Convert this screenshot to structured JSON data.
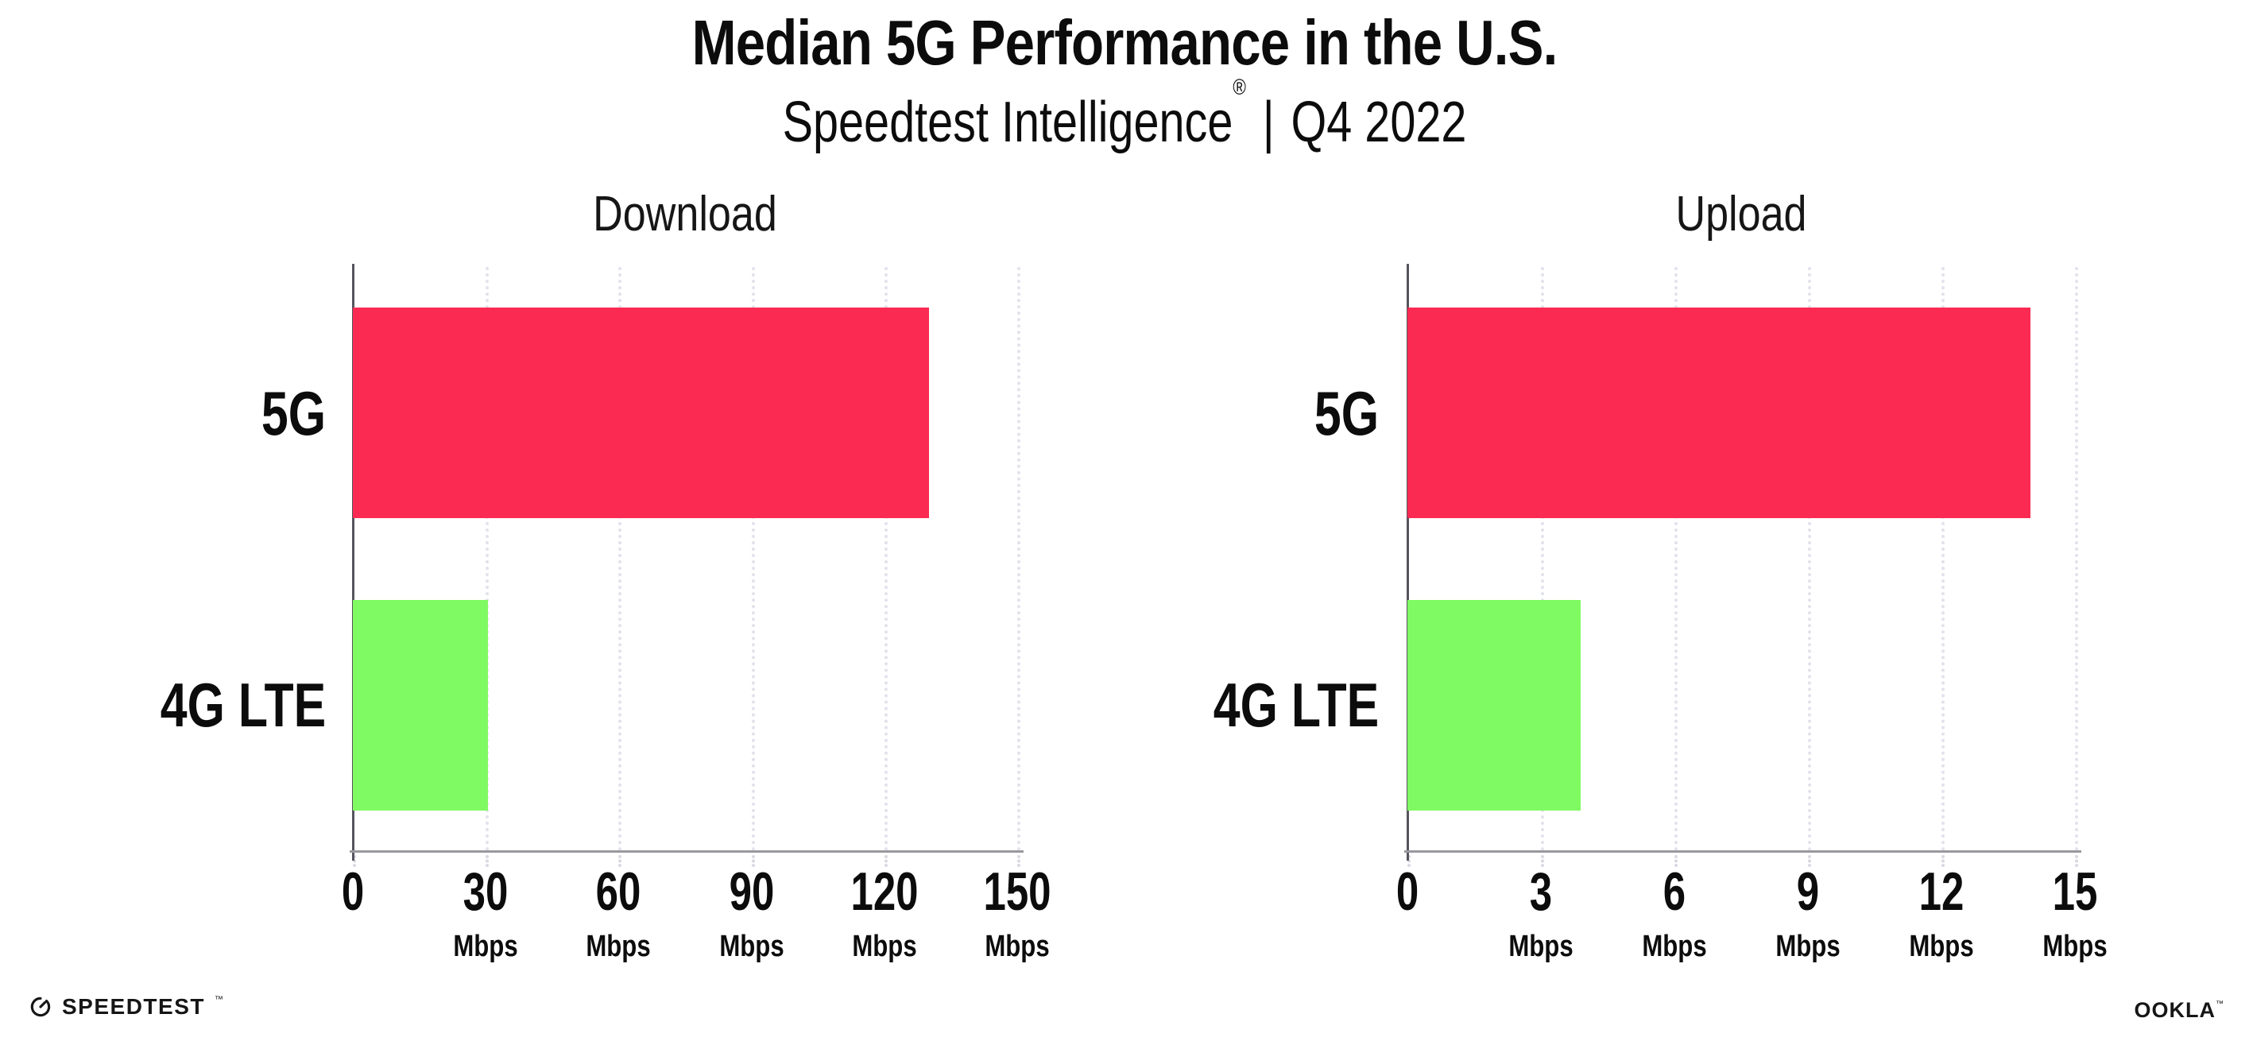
{
  "page_title": "Median 5G Performance in the U.S.",
  "subtitle": {
    "brand": "Speedtest Intelligence",
    "registered_mark": "®",
    "separator": "|",
    "period": "Q4 2022"
  },
  "chart_data": [
    {
      "type": "bar",
      "orientation": "horizontal",
      "title": "Download",
      "categories": [
        "5G",
        "4G LTE"
      ],
      "values": [
        130,
        30.5
      ],
      "unit": "Mbps",
      "xlim": [
        0,
        150
      ],
      "xticks": [
        0,
        30,
        60,
        90,
        120,
        150
      ],
      "grid": "vertical-dotted",
      "legend": "none",
      "bar_colors": [
        "#fb2a52",
        "#80fa62"
      ]
    },
    {
      "type": "bar",
      "orientation": "horizontal",
      "title": "Upload",
      "categories": [
        "5G",
        "4G LTE"
      ],
      "values": [
        14,
        3.9
      ],
      "unit": "Mbps",
      "xlim": [
        0,
        15
      ],
      "xticks": [
        0,
        3,
        6,
        9,
        12,
        15
      ],
      "grid": "vertical-dotted",
      "legend": "none",
      "bar_colors": [
        "#fb2a52",
        "#80fa62"
      ]
    }
  ],
  "colors": {
    "bar_5g": "#fb2a52",
    "bar_4g_lte": "#80fa62",
    "grid_line": "#e2e2ec",
    "x_axis_line": "#98989f",
    "y_axis_line": "#55555e",
    "text": "#0c0c0c",
    "background": "#ffffff"
  },
  "footer": {
    "speedtest_icon": "gauge-icon",
    "speedtest_wordmark": "SPEEDTEST",
    "speedtest_trademark": "™",
    "ookla_wordmark": "OOKLA",
    "ookla_trademark": "™"
  }
}
